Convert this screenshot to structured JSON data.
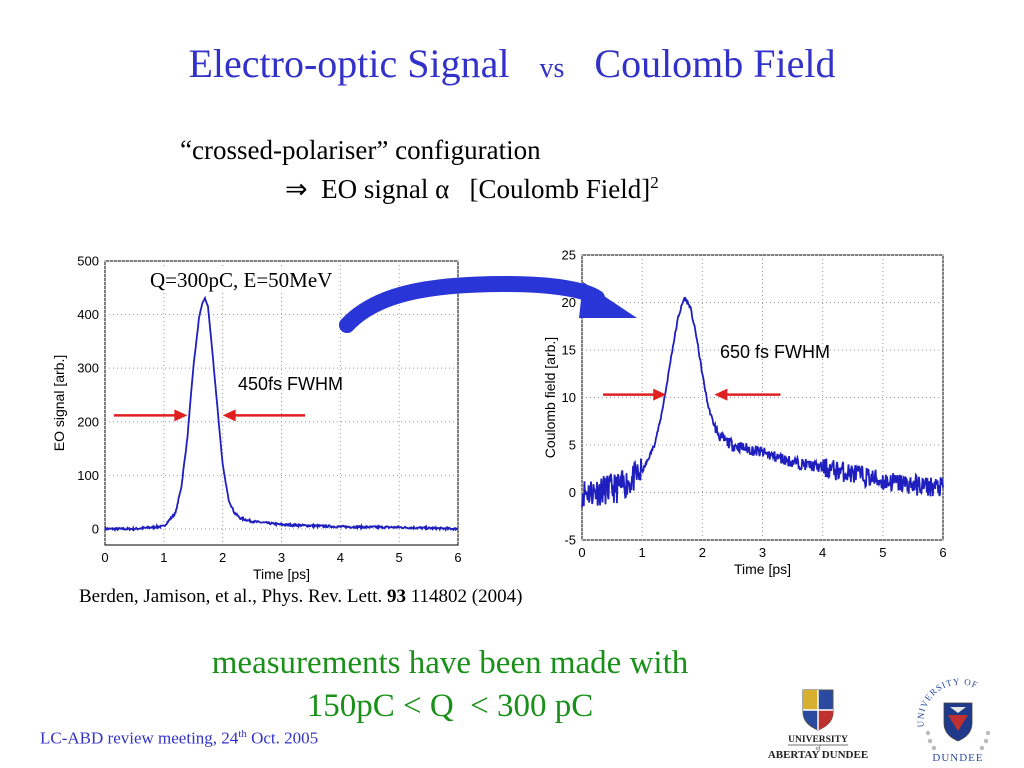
{
  "slide": {
    "title_left": "Electro-optic Signal",
    "title_vs": "vs",
    "title_right": "Coulomb Field",
    "subtitle_line1": "“crossed-polariser” configuration",
    "subtitle_line2_arrow": "⇒",
    "subtitle_line2_main": "EO signal α   [Coulomb Field]",
    "subtitle_line2_sup": "2",
    "arrow_color": "#2a35d8",
    "citation_pre": "Berden, Jamison, et al., Phys. Rev. Lett. ",
    "citation_bold": "93",
    "citation_post": " 114802 (2004)",
    "measurement_line1": "measurements have been made with",
    "measurement_line2": "150pC < Q  < 300 pC",
    "footer_pre": "LC-ABD review meeting, 24",
    "footer_sup": "th",
    "footer_post": " Oct. 2005",
    "title_color": "#3232c8",
    "measure_color": "#199019"
  },
  "logos": {
    "abertay_line1": "UNIVERSITY",
    "abertay_of": "of",
    "abertay_line2": "ABERTAY DUNDEE",
    "dundee_arc": "UNIVERSITY OF",
    "dundee_name": "DUNDEE"
  },
  "chart_data": [
    {
      "type": "line",
      "annotation": "Q=300pC, E=50MeV",
      "xlabel": "Time [ps]",
      "ylabel": "EO signal [arb.]",
      "xlim": [
        0,
        6
      ],
      "ylim": [
        -30,
        500
      ],
      "xticks": [
        0,
        1,
        2,
        3,
        4,
        5,
        6
      ],
      "yticks": [
        0,
        100,
        200,
        300,
        400,
        500
      ],
      "grid": true,
      "fwhm_label": "450fs FWHM",
      "fwhm_level": 212,
      "fwhm_arrows": [
        [
          0.15,
          1.4
        ],
        [
          2.0,
          3.4
        ]
      ],
      "line_color": "#1f1fbf",
      "arrow_color": "#e02020",
      "series": [
        {
          "x": [
            0.0,
            0.5,
            1.0,
            1.2,
            1.3,
            1.4,
            1.5,
            1.6,
            1.65,
            1.7,
            1.75,
            1.8,
            1.9,
            2.0,
            2.1,
            2.2,
            2.3,
            2.5,
            3.0,
            4.0,
            5.0,
            6.0
          ],
          "y": [
            0,
            0,
            5,
            30,
            80,
            170,
            300,
            395,
            420,
            430,
            415,
            360,
            240,
            120,
            55,
            30,
            20,
            14,
            8,
            4,
            3,
            0
          ]
        }
      ]
    },
    {
      "type": "line",
      "xlabel": "Time [ps]",
      "ylabel": "Coulomb field [arb.]",
      "xlim": [
        0,
        6
      ],
      "ylim": [
        -5,
        25
      ],
      "xticks": [
        0,
        1,
        2,
        3,
        4,
        5,
        6
      ],
      "yticks": [
        -5,
        0,
        5,
        10,
        15,
        20,
        25
      ],
      "grid": true,
      "fwhm_label": "650 fs FWHM",
      "fwhm_level": 10.3,
      "fwhm_arrows": [
        [
          0.35,
          1.4
        ],
        [
          2.2,
          3.3
        ]
      ],
      "line_color": "#1f1fbf",
      "arrow_color": "#e02020",
      "series": [
        {
          "x": [
            0.0,
            0.3,
            0.6,
            0.8,
            1.0,
            1.1,
            1.2,
            1.3,
            1.4,
            1.5,
            1.6,
            1.7,
            1.8,
            1.9,
            2.0,
            2.1,
            2.2,
            2.3,
            2.5,
            3.0,
            3.5,
            4.0,
            4.5,
            5.0,
            5.5,
            6.0
          ],
          "y": [
            0,
            0.2,
            0.5,
            1.2,
            2.2,
            3.5,
            5.0,
            7.5,
            11.0,
            15.0,
            18.5,
            20.5,
            19.5,
            16.5,
            12.5,
            9.0,
            7.0,
            5.8,
            5.0,
            4.2,
            3.2,
            2.6,
            2.0,
            1.2,
            0.8,
            0.5
          ]
        }
      ]
    }
  ]
}
